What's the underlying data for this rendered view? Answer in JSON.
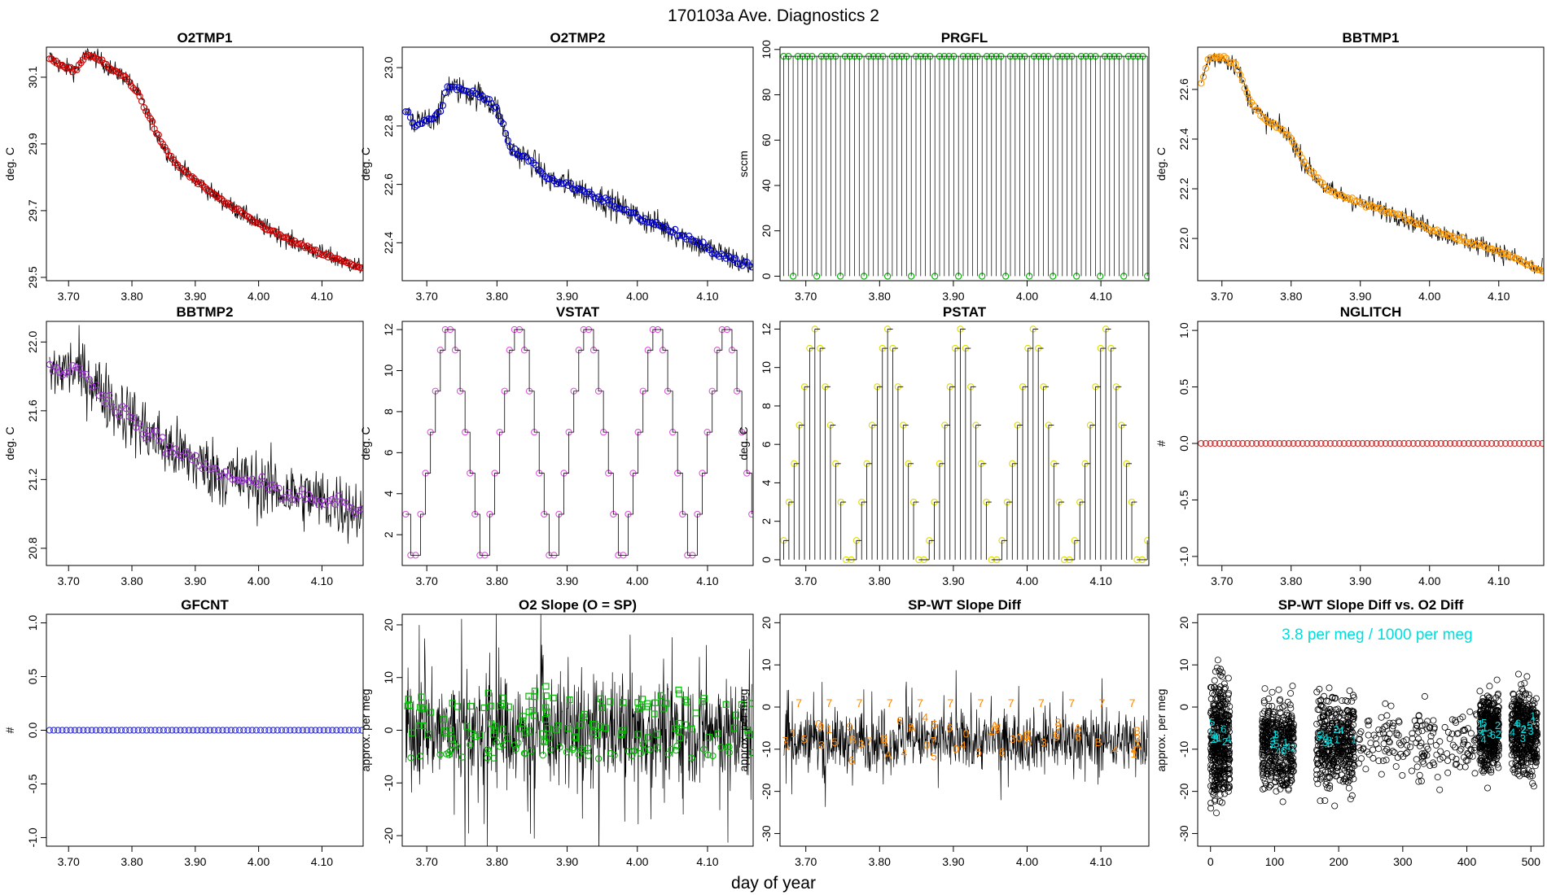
{
  "page": {
    "title": "170103a   Ave. Diagnostics 2",
    "xlabel": "day of year"
  },
  "chart_data": [
    {
      "type": "line",
      "title": "O2TMP1",
      "ylabel": "deg. C",
      "xlim": [
        3.665,
        4.165
      ],
      "ylim": [
        29.49,
        30.19
      ],
      "xticks": [
        3.7,
        3.8,
        3.9,
        4.0,
        4.1
      ],
      "yticks": [
        29.5,
        29.7,
        29.9,
        30.1
      ],
      "trace": {
        "x": [
          3.67,
          3.69,
          3.71,
          3.73,
          3.75,
          3.77,
          3.79,
          3.81,
          3.83,
          3.85,
          3.87,
          3.9,
          3.95,
          4.0,
          4.05,
          4.1,
          4.16
        ],
        "y": [
          30.16,
          30.13,
          30.12,
          30.17,
          30.15,
          30.12,
          30.1,
          30.05,
          29.97,
          29.89,
          29.84,
          29.79,
          29.72,
          29.66,
          29.61,
          29.57,
          29.53
        ]
      },
      "noise": 0.02,
      "marker": "circle",
      "marker_color": "#cc0000",
      "n_markers": 150,
      "marker_noise": 0.004
    },
    {
      "type": "line",
      "title": "O2TMP2",
      "ylabel": "deg. C",
      "xlim": [
        3.665,
        4.165
      ],
      "ylim": [
        22.27,
        23.07
      ],
      "xticks": [
        3.7,
        3.8,
        3.9,
        4.0,
        4.1
      ],
      "yticks": [
        22.4,
        22.6,
        22.8,
        23.0
      ],
      "trace": {
        "x": [
          3.67,
          3.68,
          3.7,
          3.72,
          3.73,
          3.75,
          3.78,
          3.8,
          3.82,
          3.85,
          3.87,
          3.9,
          3.95,
          4.0,
          4.05,
          4.1,
          4.16
        ],
        "y": [
          22.86,
          22.8,
          22.82,
          22.85,
          22.94,
          22.92,
          22.9,
          22.86,
          22.72,
          22.68,
          22.62,
          22.6,
          22.55,
          22.49,
          22.44,
          22.38,
          22.32
        ]
      },
      "noise": 0.035,
      "marker": "circle",
      "marker_color": "#0000cc",
      "n_markers": 150,
      "marker_noise": 0.008
    },
    {
      "type": "step",
      "title": "PRGFL",
      "ylabel": "sccm",
      "xlim": [
        3.665,
        4.165
      ],
      "ylim": [
        -2,
        101
      ],
      "xticks": [
        3.7,
        3.8,
        3.9,
        4.0,
        4.1
      ],
      "yticks": [
        0,
        20,
        40,
        60,
        80,
        100
      ],
      "high": 97,
      "low": 0,
      "n_spikes": 78,
      "zero_every": 5,
      "marker": "circle",
      "marker_color": "#00aa00"
    },
    {
      "type": "line",
      "title": "BBTMP1",
      "ylabel": "deg. C",
      "xlim": [
        3.665,
        4.165
      ],
      "ylim": [
        21.83,
        22.77
      ],
      "xticks": [
        3.7,
        3.8,
        3.9,
        4.0,
        4.1
      ],
      "yticks": [
        22.0,
        22.2,
        22.4,
        22.6
      ],
      "trace": {
        "x": [
          3.67,
          3.68,
          3.7,
          3.72,
          3.74,
          3.76,
          3.78,
          3.8,
          3.82,
          3.85,
          3.9,
          3.95,
          4.0,
          4.05,
          4.1,
          4.16
        ],
        "y": [
          22.62,
          22.72,
          22.73,
          22.7,
          22.56,
          22.48,
          22.45,
          22.4,
          22.3,
          22.2,
          22.14,
          22.1,
          22.04,
          21.99,
          21.95,
          21.87
        ]
      },
      "noise": 0.03,
      "marker": "circle",
      "marker_color": "#ff9900",
      "n_markers": 150,
      "marker_noise": 0.006
    },
    {
      "type": "line",
      "title": "BBTMP2",
      "ylabel": "deg. C",
      "xlim": [
        3.665,
        4.165
      ],
      "ylim": [
        20.7,
        22.12
      ],
      "xticks": [
        3.7,
        3.8,
        3.9,
        4.0,
        4.1
      ],
      "yticks": [
        20.8,
        21.2,
        21.6,
        22.0
      ],
      "trace": {
        "x": [
          3.67,
          3.7,
          3.73,
          3.76,
          3.8,
          3.85,
          3.9,
          3.95,
          4.0,
          4.05,
          4.1,
          4.16
        ],
        "y": [
          21.82,
          21.85,
          21.8,
          21.68,
          21.55,
          21.4,
          21.3,
          21.22,
          21.17,
          21.12,
          21.08,
          21.02
        ]
      },
      "noise": 0.14,
      "marker": "circle",
      "marker_color": "#9933cc",
      "n_markers": 95,
      "marker_noise": 0.035
    },
    {
      "type": "staircase",
      "title": "VSTAT",
      "ylabel": "deg. C",
      "xlim": [
        3.665,
        4.165
      ],
      "ylim": [
        0.5,
        12.4
      ],
      "xticks": [
        3.7,
        3.8,
        3.9,
        4.0,
        4.1
      ],
      "yticks": [
        2,
        4,
        6,
        8,
        10,
        12
      ],
      "cycle": [
        3,
        1,
        1,
        3,
        5,
        7,
        9,
        11,
        12,
        12,
        11,
        9,
        7,
        5
      ],
      "cycles": 5,
      "marker": "circle",
      "marker_color": "#dd55dd"
    },
    {
      "type": "spikes",
      "title": "PSTAT",
      "ylabel": "deg. C",
      "xlim": [
        3.665,
        4.165
      ],
      "ylim": [
        -0.3,
        12.4
      ],
      "xticks": [
        3.7,
        3.8,
        3.9,
        4.0,
        4.1
      ],
      "yticks": [
        0,
        2,
        4,
        6,
        8,
        10,
        12
      ],
      "cycle": [
        1,
        3,
        5,
        7,
        9,
        11,
        12,
        11,
        9,
        7,
        5,
        3,
        0,
        0
      ],
      "cycles": 5,
      "marker": "circle",
      "marker_color": "#dddd00"
    },
    {
      "type": "constant",
      "title": "NGLITCH",
      "ylabel": "#",
      "xlim": [
        3.665,
        4.165
      ],
      "ylim": [
        -1.08,
        1.08
      ],
      "xticks": [
        3.7,
        3.8,
        3.9,
        4.0,
        4.1
      ],
      "yticks": [
        -1.0,
        -0.5,
        0.0,
        0.5,
        1.0
      ],
      "value": 0,
      "n_markers": 75,
      "marker": "circle",
      "marker_color": "#cc3333"
    },
    {
      "type": "constant",
      "title": "GFCNT",
      "ylabel": "#",
      "xlim": [
        3.665,
        4.165
      ],
      "ylim": [
        -1.08,
        1.08
      ],
      "xticks": [
        3.7,
        3.8,
        3.9,
        4.0,
        4.1
      ],
      "yticks": [
        -1.0,
        -0.5,
        0.0,
        0.5,
        1.0
      ],
      "value": 0,
      "n_markers": 75,
      "marker": "circle",
      "marker_color": "#3333cc"
    },
    {
      "type": "noise",
      "title": "O2 Slope (O = SP)",
      "ylabel": "approx. per meg",
      "xlim": [
        3.665,
        4.165
      ],
      "ylim": [
        -22,
        22
      ],
      "xticks": [
        3.7,
        3.8,
        3.9,
        4.0,
        4.1
      ],
      "yticks": [
        -20,
        -10,
        0,
        10,
        20
      ],
      "center": 0,
      "noise": 7,
      "markers": [
        {
          "symbol": "square",
          "color": "#00bb00",
          "level": 5,
          "jitter": 2
        },
        {
          "symbol": "circle",
          "color": "#00bb00",
          "level": -4,
          "jitter": 1
        },
        {
          "symbol": "square",
          "color": "#00bb00",
          "level": 0,
          "jitter": 1.5
        }
      ]
    },
    {
      "type": "noise",
      "title": "SP-WT Slope Diff",
      "ylabel": "approx. per meg",
      "xlim": [
        3.665,
        4.165
      ],
      "ylim": [
        -33,
        22
      ],
      "xticks": [
        3.7,
        3.8,
        3.9,
        4.0,
        4.1
      ],
      "yticks": [
        -30,
        -20,
        -10,
        0,
        10,
        20
      ],
      "center": -8,
      "noise": 5,
      "label_points": {
        "labels": [
          "3",
          "1",
          "4",
          "5",
          "A",
          "6",
          "0",
          "9",
          "7",
          "B"
        ],
        "color": "#ff8800",
        "level": -8,
        "jitter": 3
      }
    },
    {
      "type": "scatter",
      "title": "SP-WT Slope Diff vs. O2 Diff",
      "ylabel": "approx. per meg",
      "xlim": [
        -20,
        520
      ],
      "ylim": [
        -33,
        22
      ],
      "xticks": [
        0,
        100,
        200,
        300,
        400,
        500
      ],
      "yticks": [
        -30,
        -20,
        -10,
        0,
        10,
        20
      ],
      "annotation": "3.8 per meg / 1000 per meg",
      "annotation_color": "#00dddd",
      "clusters": [
        {
          "x": [
            0,
            30
          ],
          "y_center": -8,
          "spread": 10
        },
        {
          "x": [
            80,
            130
          ],
          "y_center": -9,
          "spread": 7
        },
        {
          "x": [
            165,
            225
          ],
          "y_center": -8,
          "spread": 8
        },
        {
          "x": [
            420,
            450
          ],
          "y_center": -6,
          "spread": 6
        },
        {
          "x": [
            470,
            510
          ],
          "y_center": -6,
          "spread": 7
        }
      ],
      "sparse_x": [
        230,
        420
      ],
      "cyan_labels": [
        "1",
        "2",
        "3",
        "4",
        "5",
        "6"
      ]
    }
  ]
}
